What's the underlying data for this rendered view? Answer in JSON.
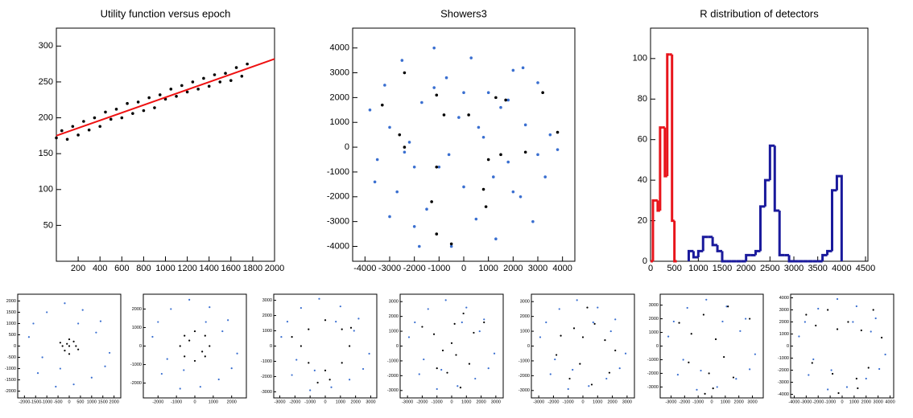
{
  "chart_data": [
    {
      "type": "scatter",
      "title": "Utility function versus epoch",
      "xlim": [
        0,
        2000
      ],
      "ylim": [
        0,
        325
      ],
      "xticks": [
        200,
        400,
        600,
        800,
        1000,
        1200,
        1400,
        1600,
        1800,
        2000
      ],
      "yticks": [
        50,
        100,
        150,
        200,
        250,
        300
      ],
      "series": [
        {
          "color": "#000000",
          "x": [
            0,
            50,
            100,
            150,
            200,
            250,
            300,
            350,
            400,
            450,
            500,
            550,
            600,
            650,
            700,
            750,
            800,
            850,
            900,
            950,
            1000,
            1050,
            1100,
            1150,
            1200,
            1250,
            1300,
            1350,
            1400,
            1450,
            1500,
            1550,
            1600,
            1650,
            1700,
            1750
          ],
          "values": [
            172,
            182,
            170,
            188,
            176,
            195,
            183,
            200,
            188,
            208,
            198,
            212,
            200,
            220,
            206,
            222,
            210,
            228,
            214,
            232,
            226,
            240,
            230,
            245,
            236,
            250,
            240,
            255,
            244,
            260,
            250,
            262,
            252,
            270,
            258,
            275
          ]
        },
        {
          "type": "line",
          "color": "#ee1111",
          "x": [
            0,
            2000
          ],
          "values": [
            175,
            282
          ]
        }
      ]
    },
    {
      "type": "scatter",
      "title": "Showers3",
      "xlim": [
        -4500,
        4500
      ],
      "ylim": [
        -4600,
        4800
      ],
      "xticks": [
        -4000,
        -3000,
        -2000,
        -1000,
        0,
        1000,
        2000,
        3000,
        4000
      ],
      "yticks": [
        -4000,
        -3000,
        -2000,
        -1000,
        0,
        1000,
        2000,
        3000,
        4000
      ],
      "series": [
        {
          "color": "#3a6fd0",
          "x": [
            -3800,
            -3500,
            -3200,
            -3000,
            -2700,
            -2500,
            -2200,
            -2000,
            -1700,
            -1500,
            -1200,
            -1000,
            -700,
            -500,
            -200,
            0,
            300,
            500,
            800,
            1000,
            1300,
            1500,
            1800,
            2000,
            2300,
            2500,
            2800,
            3000,
            3300,
            3500,
            3800,
            -3600,
            -3000,
            -2400,
            -1800,
            -1200,
            -600,
            600,
            1200,
            1800,
            2400,
            3000,
            -2000,
            0,
            2000
          ],
          "values": [
            1500,
            -500,
            2500,
            800,
            -1800,
            3500,
            200,
            -3200,
            1800,
            -2500,
            4000,
            -800,
            2800,
            -4000,
            1200,
            -1600,
            3600,
            -2900,
            400,
            2200,
            -3700,
            1600,
            -600,
            3100,
            -2000,
            900,
            -3000,
            2600,
            -1200,
            500,
            -100,
            -1400,
            -2800,
            -200,
            -4000,
            2400,
            -300,
            800,
            -1200,
            1900,
            3200,
            -300,
            -800,
            2200,
            -1800
          ]
        },
        {
          "color": "#000000",
          "x": [
            -2400,
            -3300,
            -2600,
            -2400,
            -1100,
            -800,
            -1100,
            -1300,
            -1100,
            -500,
            200,
            900,
            1000,
            1500,
            1300,
            1700,
            2500,
            3200,
            3800,
            800
          ],
          "values": [
            3000,
            1700,
            500,
            0,
            2100,
            1300,
            -800,
            -2200,
            -3500,
            -3900,
            1300,
            -2400,
            -500,
            -300,
            2000,
            1900,
            -200,
            2200,
            600,
            -1700
          ]
        }
      ]
    },
    {
      "type": "histogram",
      "title": "R distribution of detectors",
      "xlim": [
        0,
        4550
      ],
      "ylim": [
        0,
        115
      ],
      "xticks": [
        0,
        500,
        1000,
        1500,
        2000,
        2500,
        3000,
        3500,
        4000,
        4500
      ],
      "yticks": [
        0,
        20,
        40,
        60,
        80,
        100
      ],
      "series": [
        {
          "color": "#e8141b",
          "bins": [
            0,
            50,
            100,
            150,
            200,
            250,
            300,
            350,
            400,
            450,
            500,
            550
          ],
          "counts": [
            0,
            30,
            30,
            25,
            66,
            66,
            42,
            102,
            102,
            20,
            0
          ]
        },
        {
          "color": "#1a1a9c",
          "bins": [
            800,
            900,
            1000,
            1100,
            1200,
            1300,
            1400,
            1500,
            1600,
            1700,
            1800,
            1900,
            2000,
            2100,
            2200,
            2300,
            2400,
            2500,
            2600,
            2700,
            2800,
            2900,
            3000,
            3100,
            3200,
            3300,
            3400,
            3500,
            3600,
            3700,
            3800,
            3900,
            4000
          ],
          "counts": [
            5,
            2,
            5,
            12,
            12,
            8,
            5,
            0,
            0,
            0,
            0,
            0,
            3,
            3,
            5,
            27,
            40,
            57,
            25,
            3,
            3,
            0,
            0,
            0,
            0,
            0,
            0,
            0,
            3,
            5,
            35,
            42
          ]
        }
      ]
    },
    {
      "type": "scatter",
      "xlim": [
        -2300,
        2300
      ],
      "ylim": [
        -2300,
        2300
      ],
      "xticks": [
        -2000,
        -1500,
        -1000,
        -500,
        0,
        500,
        1000,
        1500,
        2000
      ],
      "yticks": [
        -2000,
        -1500,
        -1000,
        -500,
        0,
        500,
        1000,
        1500,
        2000
      ],
      "series": [
        {
          "color": "#3a6fd0",
          "x": [
            -1800,
            -1400,
            -1000,
            -600,
            -200,
            200,
            600,
            1000,
            1400,
            1800,
            -1200,
            1200,
            -400,
            400,
            -1600,
            1600
          ],
          "values": [
            400,
            -1200,
            1500,
            -1800,
            1900,
            -1700,
            1600,
            -1400,
            1100,
            -300,
            -500,
            600,
            -1000,
            1000,
            1000,
            -900
          ]
        },
        {
          "color": "#000000",
          "x": [
            -300,
            0,
            300,
            -200,
            200,
            0,
            -400,
            400,
            0,
            -100
          ],
          "values": [
            0,
            300,
            0,
            -200,
            200,
            -350,
            150,
            -150,
            0,
            100
          ]
        }
      ]
    },
    {
      "type": "scatter",
      "xlim": [
        -2800,
        2800
      ],
      "ylim": [
        -2800,
        2800
      ],
      "xticks": [
        -2000,
        -1000,
        0,
        1000,
        2000
      ],
      "yticks": [
        -2000,
        -1000,
        0,
        1000,
        2000
      ],
      "series": [
        {
          "color": "#3a6fd0",
          "x": [
            -2300,
            -1800,
            -1300,
            -800,
            -300,
            300,
            800,
            1300,
            1800,
            2300,
            -1500,
            1500,
            -600,
            600,
            -2000,
            2000
          ],
          "values": [
            500,
            -1500,
            2000,
            -2300,
            2500,
            -2200,
            2100,
            -1800,
            1400,
            -400,
            -700,
            800,
            -1300,
            1300,
            1300,
            -1200
          ]
        },
        {
          "color": "#000000",
          "x": [
            -800,
            -560,
            0,
            560,
            800,
            560,
            0,
            -560,
            -300,
            400
          ],
          "values": [
            0,
            560,
            800,
            560,
            0,
            -560,
            -800,
            -560,
            300,
            -300
          ]
        }
      ]
    },
    {
      "type": "scatter",
      "xlim": [
        -3400,
        3400
      ],
      "ylim": [
        -3400,
        3400
      ],
      "xticks": [
        -3000,
        -2000,
        -1000,
        0,
        1000,
        2000,
        3000
      ],
      "yticks": [
        -3000,
        -2000,
        -1000,
        0,
        1000,
        2000,
        3000
      ],
      "series": [
        {
          "color": "#3a6fd0",
          "x": [
            -2900,
            -2200,
            -1600,
            -1000,
            -400,
            400,
            1000,
            1600,
            2200,
            2900,
            -1900,
            1900,
            -700,
            700,
            -2500,
            2500
          ],
          "values": [
            600,
            -1900,
            2500,
            -2900,
            3100,
            -2700,
            2600,
            -2200,
            1800,
            -500,
            -900,
            1000,
            -1600,
            1600,
            1600,
            -1500
          ]
        },
        {
          "color": "#000000",
          "x": [
            -1600,
            -1100,
            0,
            1100,
            1600,
            1100,
            0,
            -1100,
            -2200,
            300,
            1700,
            -500
          ],
          "values": [
            0,
            1100,
            1700,
            1100,
            0,
            -1100,
            -1600,
            -1100,
            600,
            -2200,
            1200,
            -2400
          ]
        }
      ]
    },
    {
      "type": "scatter",
      "xlim": [
        -3500,
        3500
      ],
      "ylim": [
        -3500,
        3500
      ],
      "xticks": [
        -3000,
        -2000,
        -1000,
        0,
        1000,
        2000,
        3000
      ],
      "yticks": [
        -3000,
        -2000,
        -1000,
        0,
        1000,
        2000,
        3000
      ],
      "series": [
        {
          "color": "#3a6fd0",
          "x": [
            -2900,
            -2200,
            -1600,
            -1000,
            -400,
            400,
            1000,
            1600,
            2200,
            2900,
            -1900,
            1900,
            -700,
            700,
            -2500,
            2500
          ],
          "values": [
            600,
            -1900,
            2500,
            -2900,
            3100,
            -2700,
            2600,
            -2200,
            1800,
            -500,
            -900,
            1000,
            -1600,
            1600,
            1600,
            -1500
          ]
        },
        {
          "color": "#000000",
          "x": [
            -2000,
            -1200,
            -600,
            0,
            200,
            800,
            1500,
            2200,
            -300,
            600,
            -1000,
            1200,
            300
          ],
          "values": [
            1300,
            800,
            -300,
            200,
            1500,
            2200,
            900,
            1600,
            -1800,
            -2800,
            -1500,
            -1200,
            -600
          ]
        }
      ]
    },
    {
      "type": "scatter",
      "xlim": [
        -3500,
        3500
      ],
      "ylim": [
        -3500,
        3500
      ],
      "xticks": [
        -3000,
        -2000,
        -1000,
        0,
        1000,
        2000,
        3000
      ],
      "yticks": [
        -3000,
        -2000,
        -1000,
        0,
        1000,
        2000,
        3000
      ],
      "series": [
        {
          "color": "#3a6fd0",
          "x": [
            -2900,
            -2200,
            -1600,
            -1000,
            -400,
            400,
            1000,
            1600,
            2200,
            2900,
            -1900,
            1900,
            -700,
            700,
            -2500,
            2500
          ],
          "values": [
            600,
            -1900,
            2500,
            -2900,
            3100,
            -2700,
            2600,
            -2200,
            1800,
            -500,
            -900,
            1000,
            -1600,
            1600,
            1600,
            -1500
          ]
        },
        {
          "color": "#000000",
          "x": [
            -1500,
            -600,
            0,
            800,
            1500,
            2200,
            -200,
            -900,
            600,
            1800,
            -1800,
            300
          ],
          "values": [
            700,
            1200,
            600,
            1500,
            400,
            -300,
            -1200,
            -2200,
            -2600,
            -1800,
            -600,
            2600
          ]
        }
      ]
    },
    {
      "type": "scatter",
      "xlim": [
        -3800,
        3800
      ],
      "ylim": [
        -3800,
        3800
      ],
      "xticks": [
        -3000,
        -2000,
        -1000,
        0,
        1000,
        2000,
        3000
      ],
      "yticks": [
        -3000,
        -2000,
        -1000,
        0,
        1000,
        2000,
        3000
      ],
      "series": [
        {
          "color": "#3a6fd0",
          "x": [
            -3200,
            -2500,
            -1800,
            -1100,
            -400,
            400,
            1100,
            1800,
            2500,
            3200,
            -2100,
            2100,
            -800,
            800,
            -2800,
            2800
          ],
          "values": [
            700,
            -2100,
            2800,
            -3200,
            3400,
            -3000,
            2900,
            -2400,
            2000,
            -600,
            -1000,
            1100,
            -1800,
            1800,
            1800,
            -1700
          ]
        },
        {
          "color": "#000000",
          "x": [
            -2400,
            -1500,
            -600,
            300,
            1200,
            2800,
            -1700,
            -200,
            900,
            1600,
            -500,
            100
          ],
          "values": [
            1700,
            900,
            2300,
            500,
            2900,
            2000,
            -1200,
            -2000,
            -800,
            -2300,
            -3500,
            -3100
          ]
        }
      ]
    },
    {
      "type": "scatter",
      "xlim": [
        -4300,
        4300
      ],
      "ylim": [
        -4300,
        4300
      ],
      "xticks": [
        -4000,
        -3000,
        -2000,
        -1000,
        0,
        1000,
        2000,
        3000,
        4000
      ],
      "yticks": [
        -4000,
        -3000,
        -2000,
        -1000,
        0,
        1000,
        2000,
        3000,
        4000
      ],
      "series": [
        {
          "color": "#3a6fd0",
          "x": [
            -3600,
            -2800,
            -2000,
            -1200,
            -400,
            400,
            1200,
            2000,
            2800,
            3600,
            -2400,
            2400,
            -900,
            900,
            -3100,
            3100
          ],
          "values": [
            800,
            -2400,
            3100,
            -3600,
            3900,
            -3400,
            3300,
            -2700,
            2300,
            -700,
            -1100,
            1200,
            -2000,
            2000,
            2000,
            -1900
          ]
        },
        {
          "color": "#000000",
          "x": [
            -3000,
            -2200,
            -1200,
            -400,
            500,
            1600,
            2600,
            3300,
            -2500,
            -800,
            1200,
            2200,
            -300,
            1300
          ],
          "values": [
            2600,
            1700,
            3000,
            1400,
            2000,
            1300,
            3000,
            700,
            -1400,
            -2300,
            -2700,
            -1800,
            -3900,
            -3500
          ]
        }
      ]
    }
  ]
}
